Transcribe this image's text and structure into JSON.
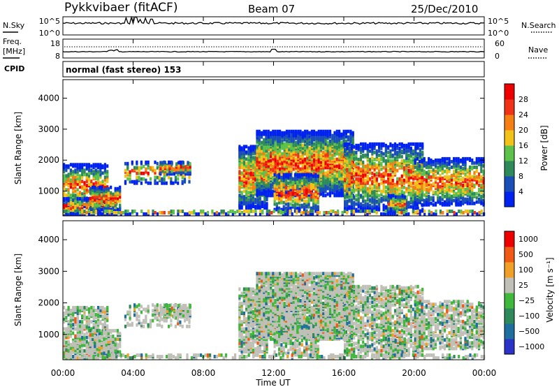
{
  "header": {
    "title": "Pykkvibaer (fitACF)",
    "beam": "Beam 07",
    "date": "25/Dec/2010"
  },
  "side_labels": {
    "nsky": "N.Sky",
    "freq_top": "Freq.",
    "freq_unit": "[MHz]",
    "cpid": "CPID",
    "nsearch": "N.Search",
    "nave": "Nave"
  },
  "cpid_text": "normal (fast stereo) 153",
  "x_axis": {
    "label": "Time UT",
    "ticks": [
      "00:00",
      "04:00",
      "08:00",
      "12:00",
      "16:00",
      "20:00",
      "00:00"
    ]
  },
  "chart_data": [
    {
      "type": "line",
      "name": "noise",
      "left_ticks": [
        "10^5",
        "10^0"
      ],
      "right_ticks": [
        "10^5",
        "10^0"
      ]
    },
    {
      "type": "line",
      "name": "frequency",
      "left_ticks": [
        "18",
        "8"
      ],
      "right_ticks": [
        "60",
        "0"
      ]
    },
    {
      "type": "heatmap",
      "name": "power",
      "ylabel": "Slant Range [km]",
      "yticks": [
        1000,
        2000,
        3000,
        4000
      ],
      "ylim": [
        200,
        4600
      ],
      "xlim_hours": [
        0,
        24
      ],
      "colorbar": {
        "label": "Power [dB]",
        "ticks": [
          "28",
          "24",
          "20",
          "16",
          "12",
          "8",
          "4"
        ],
        "colors": [
          "#0022ee",
          "#1a4fb8",
          "#2e8a5a",
          "#5cc24a",
          "#f2c21a",
          "#f57f12",
          "#f03216",
          "#ee0000"
        ]
      }
    },
    {
      "type": "heatmap",
      "name": "velocity",
      "ylabel": "Slant Range [km]",
      "yticks": [
        1000,
        2000,
        3000,
        4000
      ],
      "ylim": [
        200,
        4600
      ],
      "xlim_hours": [
        0,
        24
      ],
      "colorbar": {
        "label": "Velocity [m s⁻¹]",
        "ticks": [
          "1000",
          "500",
          "100",
          "25",
          "−25",
          "−100",
          "−500",
          "−1000"
        ],
        "colors": [
          "#2a32c8",
          "#1e6ea0",
          "#2e8a5a",
          "#40b83c",
          "#c0c0b8",
          "#f0a028",
          "#f05a14",
          "#ee0000"
        ]
      }
    }
  ]
}
